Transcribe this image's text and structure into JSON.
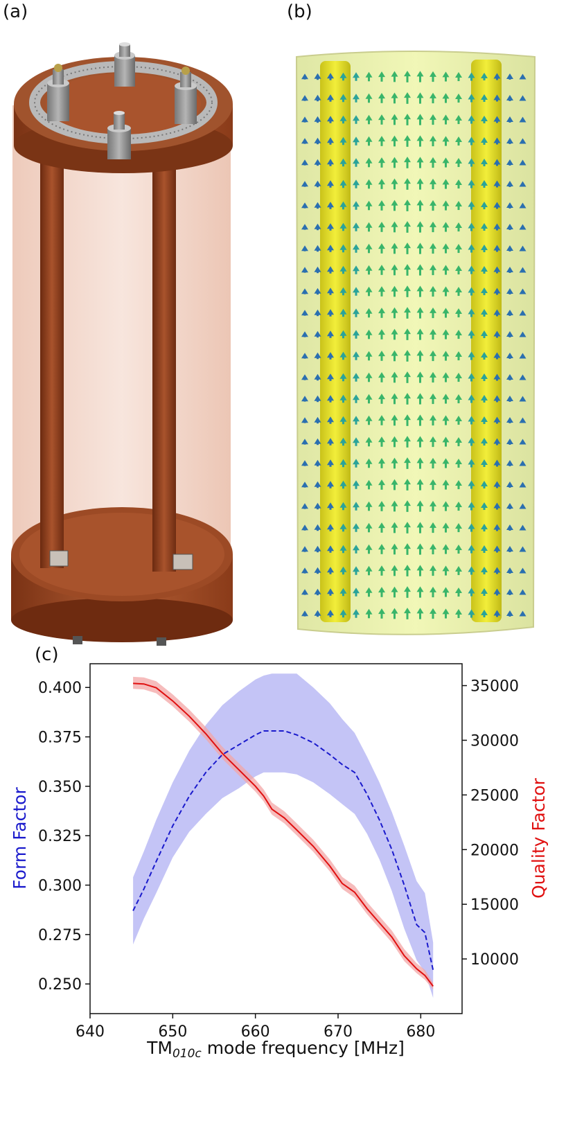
{
  "panels": {
    "a": {
      "label": "(a)"
    },
    "b": {
      "label": "(b)"
    },
    "c": {
      "label": "(c)"
    }
  },
  "colors": {
    "form_factor": "#1a1acc",
    "form_factor_band": "#9c9cf0",
    "quality_factor": "#e01010",
    "quality_factor_band": "#f3a5a5",
    "copper": "#a8512c",
    "field_yellow": "#e8f07a"
  },
  "chart_data": {
    "type": "line",
    "title": "",
    "xlabel": "TM010c mode frequency [MHz]",
    "xlabel_parts": {
      "main": "TM",
      "sub": "010c",
      "rest": " mode frequency [MHz]"
    },
    "ylabel_left": "Form Factor",
    "ylabel_right": "Quality Factor",
    "xlim": [
      640,
      685
    ],
    "ylim_left": [
      0.235,
      0.412
    ],
    "ylim_right": [
      5000,
      37000
    ],
    "xticks": [
      640,
      650,
      660,
      670,
      680
    ],
    "yticks_left": [
      "0.250",
      "0.275",
      "0.300",
      "0.325",
      "0.350",
      "0.375",
      "0.400"
    ],
    "yticks_right": [
      10000,
      15000,
      20000,
      25000,
      30000,
      35000
    ],
    "grid": false,
    "series": [
      {
        "axis": "left",
        "style": "dashed",
        "x": [
          645.2,
          646.5,
          648,
          650,
          652,
          654,
          656,
          658,
          660,
          661,
          662,
          663.5,
          665,
          667,
          669,
          670.5,
          672,
          673.5,
          675,
          676.5,
          678,
          679.5,
          680.5,
          681.5
        ],
        "y": [
          0.287,
          0.298,
          0.312,
          0.33,
          0.345,
          0.357,
          0.366,
          0.371,
          0.376,
          0.378,
          0.378,
          0.378,
          0.376,
          0.372,
          0.366,
          0.361,
          0.357,
          0.346,
          0.333,
          0.318,
          0.3,
          0.28,
          0.276,
          0.257
        ],
        "y_low": [
          0.27,
          0.283,
          0.296,
          0.314,
          0.327,
          0.336,
          0.344,
          0.349,
          0.355,
          0.357,
          0.357,
          0.357,
          0.356,
          0.352,
          0.346,
          0.341,
          0.336,
          0.326,
          0.313,
          0.297,
          0.278,
          0.262,
          0.256,
          0.243
        ],
        "y_high": [
          0.304,
          0.317,
          0.333,
          0.352,
          0.368,
          0.381,
          0.391,
          0.398,
          0.404,
          0.406,
          0.407,
          0.407,
          0.407,
          0.4,
          0.392,
          0.384,
          0.377,
          0.365,
          0.352,
          0.337,
          0.32,
          0.302,
          0.296,
          0.271
        ]
      },
      {
        "axis": "right",
        "style": "solid",
        "x": [
          645.2,
          646.5,
          648,
          650,
          652,
          654,
          656,
          658,
          660,
          661,
          662,
          663.5,
          665,
          667,
          669,
          670.5,
          672,
          673.5,
          675,
          676.5,
          678,
          679.5,
          680.5,
          681.5
        ],
        "y": [
          35200,
          35150,
          34800,
          33600,
          32200,
          30600,
          28800,
          27300,
          25800,
          24900,
          23700,
          22900,
          21800,
          20300,
          18500,
          16900,
          16100,
          14600,
          13300,
          12000,
          10300,
          9100,
          8500,
          7500
        ],
        "y_low": [
          34700,
          34650,
          34300,
          33100,
          31700,
          30100,
          28300,
          26800,
          25300,
          24400,
          23200,
          22400,
          21300,
          19800,
          18000,
          16400,
          15600,
          14100,
          12800,
          11500,
          9800,
          8700,
          8100,
          7200
        ],
        "y_high": [
          35800,
          35750,
          35400,
          34200,
          32800,
          31200,
          29400,
          27900,
          26400,
          25500,
          24300,
          23500,
          22400,
          20900,
          19100,
          17500,
          16700,
          15200,
          13900,
          12600,
          10900,
          9600,
          9000,
          7800
        ]
      }
    ]
  }
}
